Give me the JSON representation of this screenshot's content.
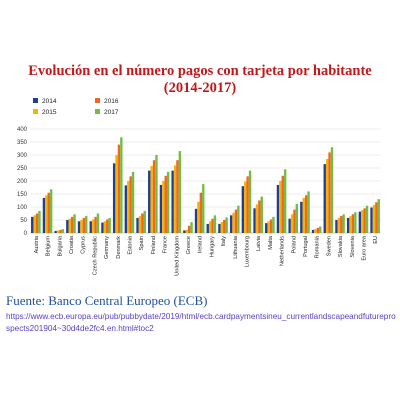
{
  "header": {
    "title_line1": "Evolución en el número pagos con tarjeta por habitante",
    "title_line2": "(2014-2017)"
  },
  "footer": {
    "source": "Fuente: Banco Central Europeo (ECB)",
    "url": "https://www.ecb.europa.eu/pub/pubbydate/2019/html/ecb.cardpaymentsineu_currentlandscapeandfutureprospects201904~30d4de2fc4.en.html#toc2"
  },
  "colors": {
    "2014": "#1f3f96",
    "2015": "#f4b400",
    "2016": "#f26522",
    "2017": "#72be44"
  },
  "chart_data": {
    "type": "bar",
    "title": "",
    "xlabel": "",
    "ylabel": "",
    "ylim": [
      0,
      400
    ],
    "yticks": [
      0,
      50,
      100,
      150,
      200,
      250,
      300,
      350,
      400
    ],
    "grid": true,
    "legend": "top-left",
    "legend_order": [
      "2014",
      "2016",
      "2015",
      "2017"
    ],
    "categories": [
      "Austria",
      "Belgium",
      "Bulgaria",
      "Croatia",
      "Cyprus",
      "Czech Republic",
      "Germany",
      "Denmark",
      "Estonia",
      "Spain",
      "Finland",
      "France",
      "United Kingdom",
      "Greece",
      "Ireland",
      "Hungary",
      "Italy",
      "Lithuania",
      "Luxembourg",
      "Latvia",
      "Malta",
      "Netherlands",
      "Poland",
      "Portugal",
      "Romania",
      "Sweden",
      "Slovakia",
      "Slovenia",
      "Euro area",
      "EU"
    ],
    "series": [
      {
        "name": "2014",
        "values": [
          62,
          135,
          8,
          50,
          45,
          45,
          40,
          268,
          183,
          58,
          240,
          185,
          240,
          10,
          93,
          35,
          35,
          68,
          180,
          95,
          38,
          185,
          55,
          120,
          12,
          265,
          50,
          58,
          82,
          98
        ]
      },
      {
        "name": "2015",
        "values": [
          68,
          145,
          10,
          55,
          50,
          52,
          45,
          300,
          200,
          65,
          258,
          200,
          260,
          12,
          120,
          45,
          42,
          78,
          198,
          110,
          45,
          200,
          72,
          135,
          15,
          285,
          58,
          65,
          88,
          108
        ]
      },
      {
        "name": "2016",
        "values": [
          75,
          155,
          12,
          62,
          58,
          62,
          52,
          340,
          218,
          75,
          280,
          220,
          280,
          28,
          155,
          55,
          50,
          90,
          218,
          125,
          52,
          220,
          90,
          145,
          20,
          310,
          65,
          72,
          95,
          118
        ]
      },
      {
        "name": "2017",
        "values": [
          85,
          168,
          15,
          72,
          65,
          75,
          58,
          368,
          235,
          85,
          300,
          235,
          315,
          42,
          188,
          68,
          60,
          105,
          240,
          140,
          62,
          245,
          112,
          160,
          25,
          330,
          72,
          80,
          105,
          130
        ]
      }
    ]
  }
}
